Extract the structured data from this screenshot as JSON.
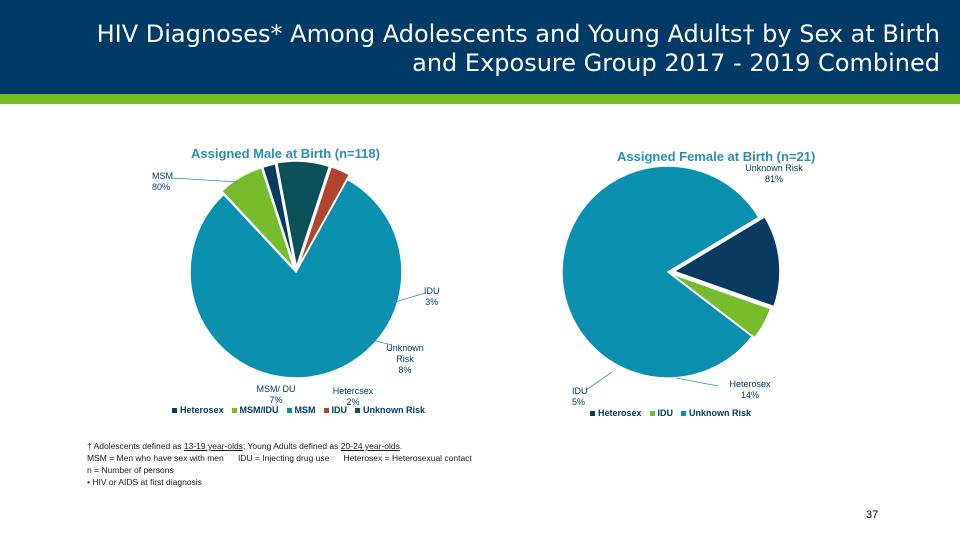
{
  "header": {
    "title_line1": "HIV Diagnoses* Among Adolescents and Young Adults† by Sex at Birth",
    "title_line2": "and Exposure Group 2017 - 2019 Combined"
  },
  "colors": {
    "header_bg": "#003a66",
    "accent": "#78be20",
    "msm": "#0b8fae",
    "msm_idu": "#76bc2a",
    "heterosex": "#0b3a60",
    "idu_male": "#b0442c",
    "unknown_male": "#0b5058",
    "idu_female": "#76bc2a",
    "unknown_female": "#0b8fae"
  },
  "chart_data": [
    {
      "type": "pie",
      "title": "Assigned Male at Birth (n=118)",
      "slices": [
        {
          "name": "MSM",
          "value": 80
        },
        {
          "name": "MSM/ DU",
          "value": 7
        },
        {
          "name": "Hetercsex",
          "value": 2
        },
        {
          "name": "Unknown Risk",
          "value": 8
        },
        {
          "name": "IDU",
          "value": 3
        }
      ],
      "labels": {
        "msm": {
          "name": "MSM",
          "pct": "80%"
        },
        "idu": {
          "name": "IDU",
          "pct": "3%"
        },
        "unknown": {
          "name": "Unknown",
          "name2": "Risk",
          "pct": "8%"
        },
        "msm_idu": {
          "name": "MSM/ DU",
          "pct": "7%"
        },
        "heterosex": {
          "name": "Hetercsex",
          "pct": "2%"
        }
      },
      "legend": [
        "Heterosex",
        "MSM/IDU",
        "MSM",
        "IDU",
        "Unknown Risk"
      ]
    },
    {
      "type": "pie",
      "title": "Assigned Female at Birth (n=21)",
      "slices": [
        {
          "name": "Heterosex",
          "value": 14
        },
        {
          "name": "IDU",
          "value": 5
        },
        {
          "name": "Unknown Risk",
          "value": 81
        }
      ],
      "labels": {
        "unknown": {
          "name": "Unknown Risk",
          "pct": "81%"
        },
        "heterosex": {
          "name": "Heterosex",
          "pct": "14%"
        },
        "idu": {
          "name": "IDU",
          "pct": "5%"
        }
      },
      "legend": [
        "Heterosex",
        "IDU",
        "Unknown Risk"
      ]
    }
  ],
  "notes": {
    "line1_prefix": "† Adolescents defined as ",
    "line1_a": "13-19 year-olds",
    "line1_mid": "; Young Adults defined as ",
    "line1_b": "20-24 year-olds",
    "line1_end": ".",
    "line2_a": "MSM = Men who have sex with men",
    "line2_b": "IDU = Injecting drug use",
    "line2_c": "Heterosex = Heterosexual contact",
    "line3": "n = Number of persons",
    "line4": "•  HIV or AIDS at first diagnosis"
  },
  "page_number": "37"
}
